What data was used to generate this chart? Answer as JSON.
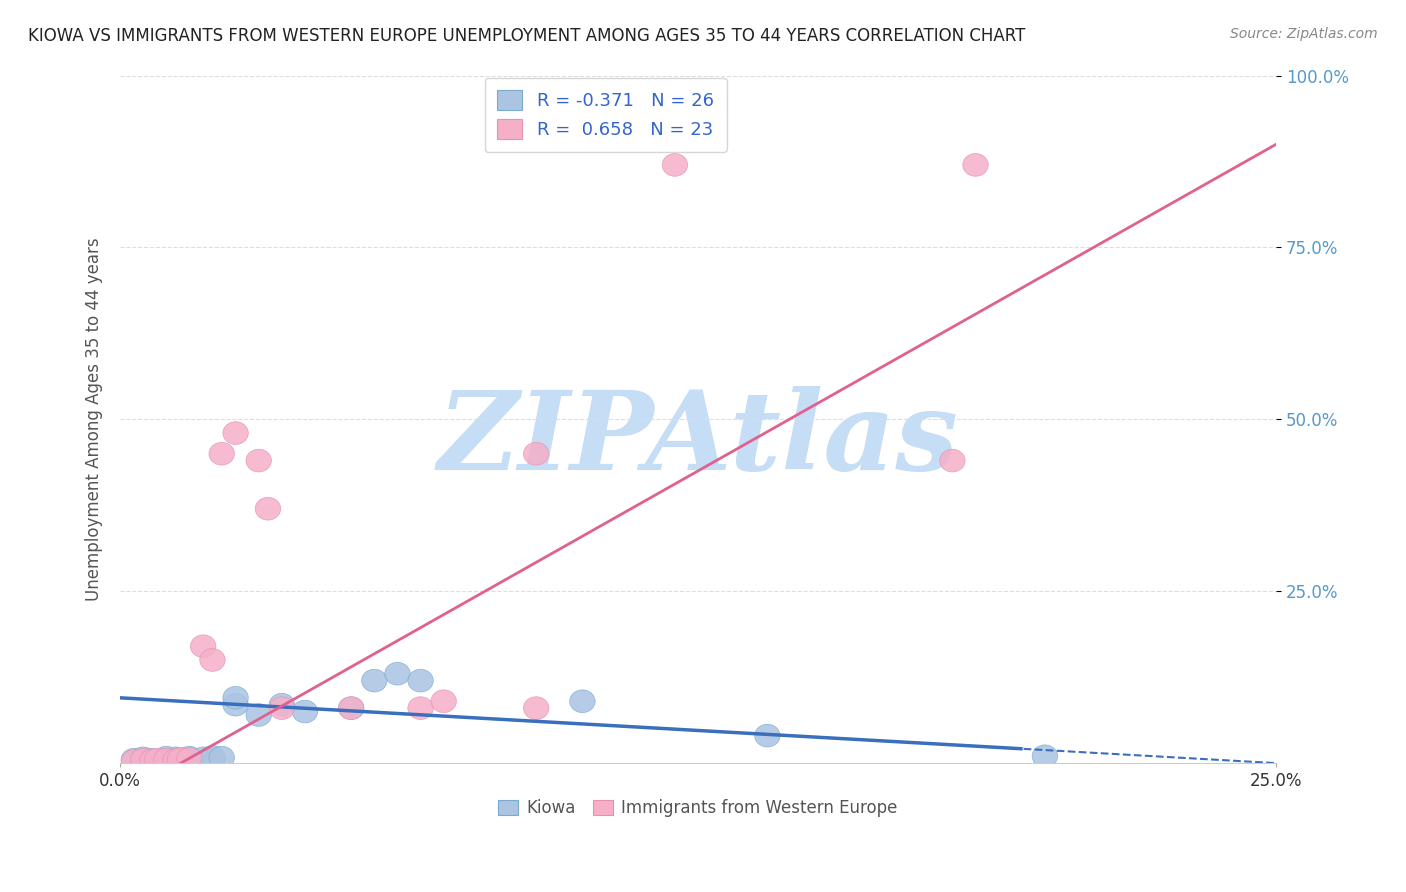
{
  "title": "KIOWA VS IMMIGRANTS FROM WESTERN EUROPE UNEMPLOYMENT AMONG AGES 35 TO 44 YEARS CORRELATION CHART",
  "source": "Source: ZipAtlas.com",
  "xlim": [
    0,
    0.25
  ],
  "ylim": [
    0,
    1.0
  ],
  "kiowa_R": -0.371,
  "kiowa_N": 26,
  "imm_R": 0.658,
  "imm_N": 23,
  "kiowa_color": "#aac4e2",
  "imm_color": "#f5b0c8",
  "kiowa_edge_color": "#7aaad0",
  "imm_edge_color": "#e890b0",
  "kiowa_line_color": "#3a6fbd",
  "imm_line_color": "#e06090",
  "kiowa_scatter": [
    [
      0.003,
      0.005
    ],
    [
      0.005,
      0.007
    ],
    [
      0.007,
      0.005
    ],
    [
      0.008,
      0.003
    ],
    [
      0.01,
      0.005
    ],
    [
      0.01,
      0.008
    ],
    [
      0.012,
      0.007
    ],
    [
      0.013,
      0.006
    ],
    [
      0.015,
      0.005
    ],
    [
      0.015,
      0.008
    ],
    [
      0.018,
      0.007
    ],
    [
      0.02,
      0.005
    ],
    [
      0.02,
      0.009
    ],
    [
      0.022,
      0.008
    ],
    [
      0.025,
      0.085
    ],
    [
      0.025,
      0.095
    ],
    [
      0.03,
      0.07
    ],
    [
      0.035,
      0.085
    ],
    [
      0.04,
      0.075
    ],
    [
      0.05,
      0.08
    ],
    [
      0.055,
      0.12
    ],
    [
      0.06,
      0.13
    ],
    [
      0.065,
      0.12
    ],
    [
      0.1,
      0.09
    ],
    [
      0.14,
      0.04
    ],
    [
      0.2,
      0.01
    ]
  ],
  "imm_scatter": [
    [
      0.003,
      0.003
    ],
    [
      0.005,
      0.005
    ],
    [
      0.007,
      0.004
    ],
    [
      0.008,
      0.005
    ],
    [
      0.01,
      0.005
    ],
    [
      0.012,
      0.004
    ],
    [
      0.013,
      0.006
    ],
    [
      0.015,
      0.006
    ],
    [
      0.018,
      0.17
    ],
    [
      0.02,
      0.15
    ],
    [
      0.022,
      0.45
    ],
    [
      0.025,
      0.48
    ],
    [
      0.03,
      0.44
    ],
    [
      0.032,
      0.37
    ],
    [
      0.035,
      0.08
    ],
    [
      0.05,
      0.08
    ],
    [
      0.065,
      0.08
    ],
    [
      0.07,
      0.09
    ],
    [
      0.09,
      0.45
    ],
    [
      0.12,
      0.87
    ],
    [
      0.18,
      0.44
    ],
    [
      0.185,
      0.87
    ],
    [
      0.09,
      0.08
    ]
  ],
  "background_color": "#ffffff",
  "grid_color": "#dddddd",
  "watermark": "ZIPAtlas",
  "watermark_color": "#c5ddf5",
  "ylabel_color": "#5599cc",
  "axis_label_color": "#555555"
}
